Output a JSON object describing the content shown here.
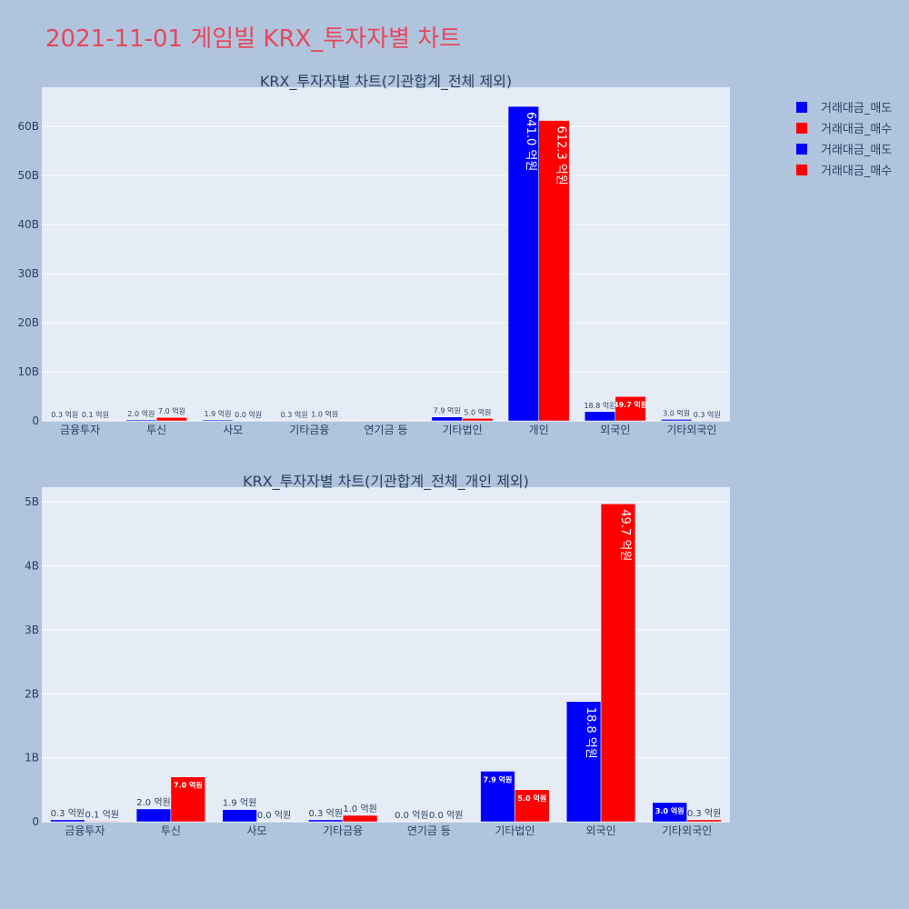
{
  "page_title": "2021-11-01 게임빌 KRX_투자자별 차트",
  "colors": {
    "sell": "#0000ff",
    "buy": "#ff0000",
    "title": "#e8475a",
    "plot_bg": "#e5ecf6",
    "page_bg": "#b0c4de"
  },
  "legend": [
    {
      "label": "거래대금_매도",
      "color": "#0000ff"
    },
    {
      "label": "거래대금_매수",
      "color": "#ff0000"
    },
    {
      "label": "거래대금_매도",
      "color": "#0000ff"
    },
    {
      "label": "거래대금_매수",
      "color": "#ff0000"
    }
  ],
  "chart_data": [
    {
      "type": "bar",
      "title": "KRX_투자자별 차트(기관합계_전체 제외)",
      "categories": [
        "금융투자",
        "투신",
        "사모",
        "기타금융",
        "연기금 등",
        "기타법인",
        "개인",
        "외국인",
        "기타외국인"
      ],
      "series": [
        {
          "name": "거래대금_매도",
          "color": "#0000ff",
          "values": [
            0.03,
            0.2,
            0.19,
            0.03,
            0.0,
            0.79,
            64.1,
            1.88,
            0.3
          ],
          "labels": [
            "0.3 억원",
            "2.0 억원",
            "1.9 억원",
            "0.3 억원",
            "",
            "7.9 억원",
            "641.0 억원",
            "18.8 억원",
            "3.0 억원"
          ]
        },
        {
          "name": "거래대금_매수",
          "color": "#ff0000",
          "values": [
            0.01,
            0.7,
            0.0,
            0.1,
            0.0,
            0.5,
            61.23,
            4.97,
            0.03
          ],
          "labels": [
            "0.1 억원",
            "7.0 억원",
            "0.0 억원",
            "1.0 억원",
            "",
            "5.0 억원",
            "612.3 억원",
            "49.7 억원",
            "0.3 억원"
          ]
        }
      ],
      "ylim": [
        0,
        68
      ],
      "yticks": [
        0,
        10,
        20,
        30,
        40,
        50,
        60
      ],
      "ytick_labels": [
        "0",
        "10B",
        "20B",
        "30B",
        "40B",
        "50B",
        "60B"
      ]
    },
    {
      "type": "bar",
      "title": "KRX_투자자별 차트(기관합계_전체_개인 제외)",
      "categories": [
        "금융투자",
        "투신",
        "사모",
        "기타금융",
        "연기금 등",
        "기타법인",
        "외국인",
        "기타외국인"
      ],
      "series": [
        {
          "name": "거래대금_매도",
          "color": "#0000ff",
          "values": [
            0.03,
            0.2,
            0.19,
            0.03,
            0.0,
            0.79,
            1.88,
            0.3
          ],
          "labels": [
            "0.3 억원",
            "2.0 억원",
            "1.9 억원",
            "0.3 억원",
            "0.0 억원",
            "7.9 억원",
            "18.8 억원",
            "3.0 억원"
          ]
        },
        {
          "name": "거래대금_매수",
          "color": "#ff0000",
          "values": [
            0.01,
            0.7,
            0.0,
            0.1,
            0.0,
            0.5,
            4.97,
            0.03
          ],
          "labels": [
            "0.1 억원",
            "7.0 억원",
            "0.0 억원",
            "1.0 억원",
            "0.0 억원",
            "5.0 억원",
            "49.7 억원",
            "0.3 억원"
          ]
        }
      ],
      "ylim": [
        0,
        5.23
      ],
      "yticks": [
        0,
        1,
        2,
        3,
        4,
        5
      ],
      "ytick_labels": [
        "0",
        "1B",
        "2B",
        "3B",
        "4B",
        "5B"
      ]
    }
  ]
}
